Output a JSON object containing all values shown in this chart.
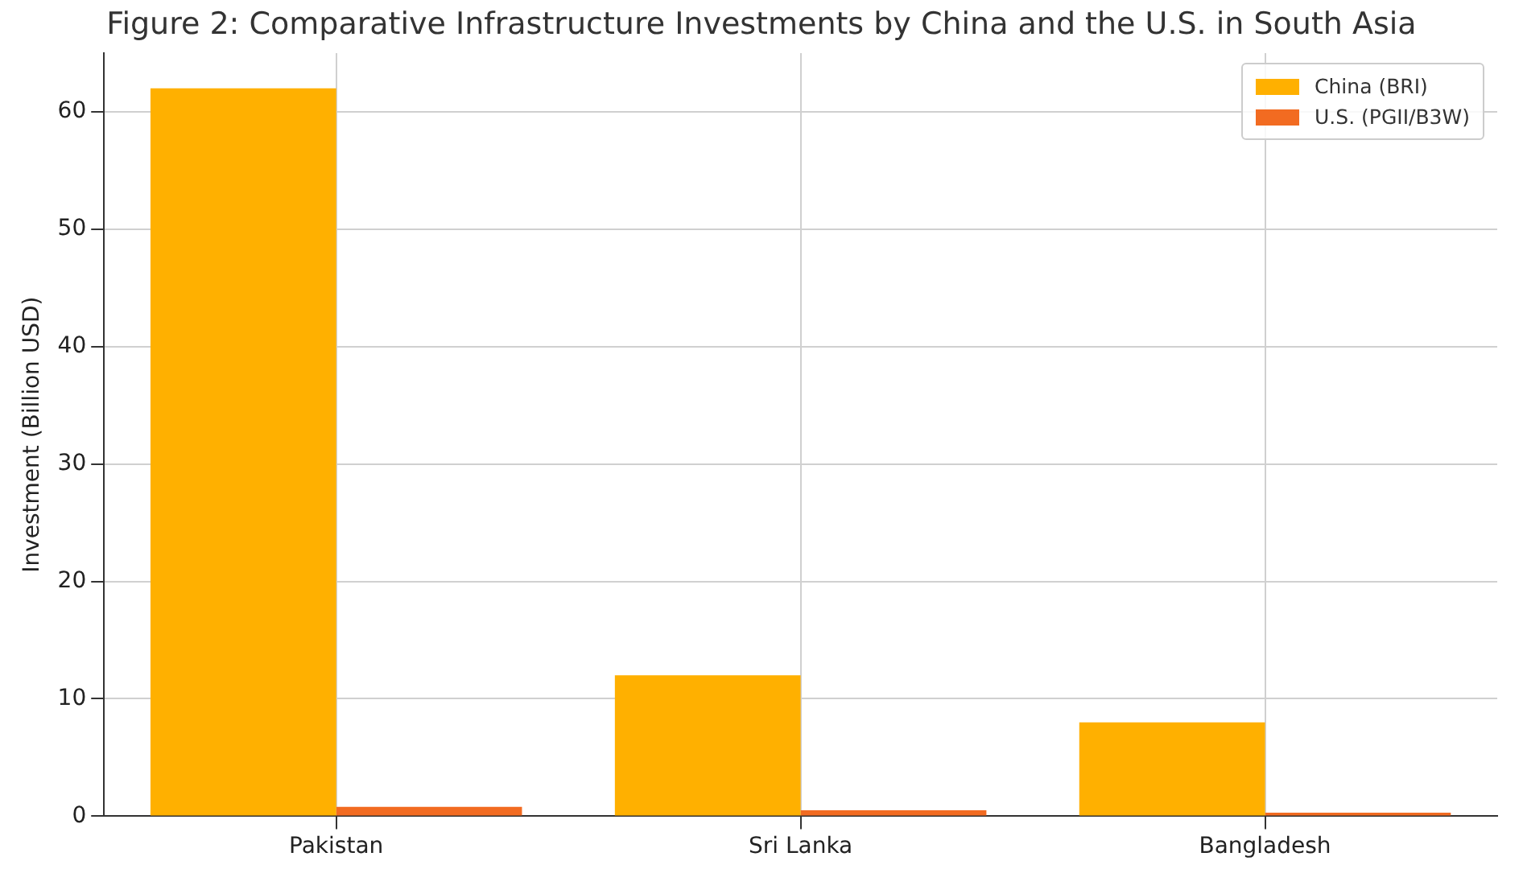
{
  "chart_data": {
    "type": "bar",
    "title": "Figure 2: Comparative Infrastructure Investments by China and the U.S. in South Asia",
    "ylabel": "Investment (Billion USD)",
    "categories": [
      "Pakistan",
      "Sri Lanka",
      "Bangladesh"
    ],
    "series": [
      {
        "name": "China (BRI)",
        "color": "#ffb000",
        "values": [
          62,
          12,
          8
        ]
      },
      {
        "name": "U.S. (PGII/B3W)",
        "color": "#f26b21",
        "values": [
          0.8,
          0.5,
          0.3
        ]
      }
    ],
    "ylim": [
      0,
      65
    ],
    "yticks": [
      0,
      10,
      20,
      30,
      40,
      50,
      60
    ],
    "grid": true,
    "legend": "top right"
  }
}
